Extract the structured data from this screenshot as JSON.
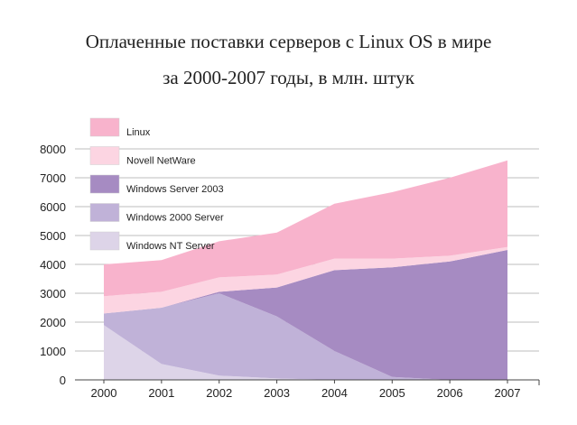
{
  "title_line1": "Оплаченные поставки серверов с Linux OS в мире",
  "title_line2": "за 2000-2007 годы, в млн. штук",
  "chart_data": {
    "type": "area",
    "stacked": true,
    "title": "Оплаченные поставки серверов с Linux OS в мире за 2000-2007 годы, в млн. штук",
    "categories": [
      "2000",
      "2001",
      "2002",
      "2003",
      "2004",
      "2005",
      "2006",
      "2007"
    ],
    "ylim": [
      0,
      8000
    ],
    "yticks": [
      0,
      1000,
      2000,
      3000,
      4000,
      5000,
      6000,
      7000,
      8000
    ],
    "grid": true,
    "legend_position": "top-left",
    "series": [
      {
        "name": "Windows NT Server",
        "color": "#ddd4e8",
        "values": [
          1900,
          550,
          150,
          50,
          0,
          0,
          0,
          0
        ]
      },
      {
        "name": "Windows 2000 Server",
        "color": "#c0b2d8",
        "values": [
          400,
          1950,
          2850,
          2150,
          1000,
          100,
          0,
          0
        ]
      },
      {
        "name": "Windows Server 2003",
        "color": "#a68bc2",
        "values": [
          0,
          0,
          50,
          1000,
          2800,
          3800,
          4100,
          4500
        ]
      },
      {
        "name": "Novell NetWare",
        "color": "#fcd5e2",
        "values": [
          600,
          550,
          500,
          450,
          400,
          300,
          200,
          100
        ]
      },
      {
        "name": "Linux",
        "color": "#f8b3cc",
        "values": [
          1100,
          1100,
          1250,
          1450,
          1900,
          2300,
          2700,
          3000
        ]
      }
    ],
    "legend_order": [
      "Linux",
      "Novell NetWare",
      "Windows Server 2003",
      "Windows 2000 Server",
      "Windows NT Server"
    ]
  }
}
